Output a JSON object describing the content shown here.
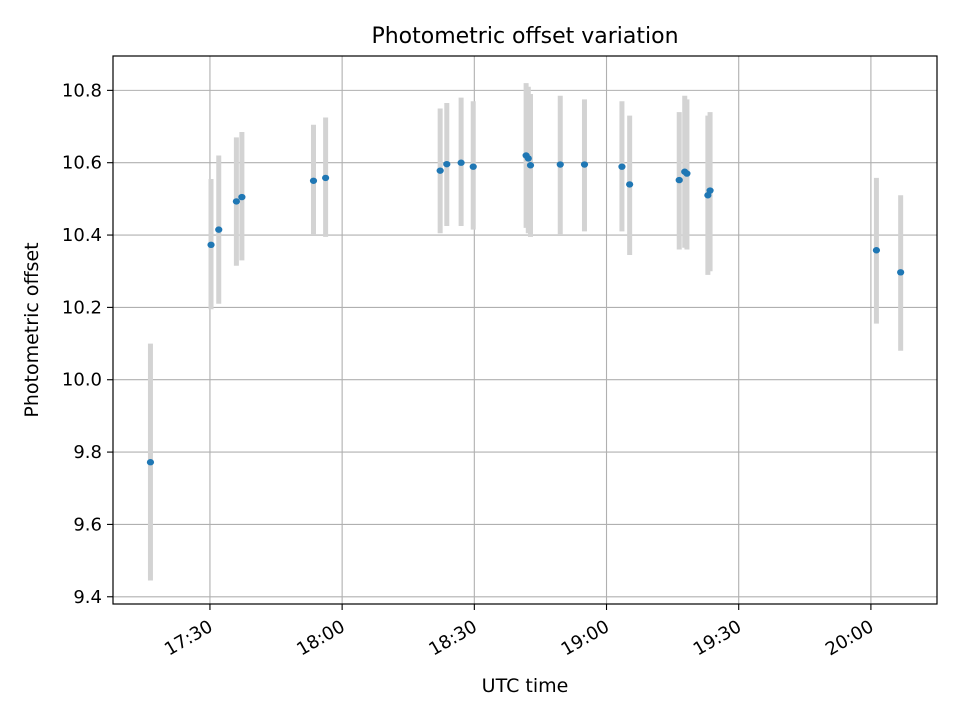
{
  "chart_data": {
    "type": "scatter",
    "title": "Photometric offset variation",
    "xlabel": "UTC time",
    "ylabel": "Photometric offset",
    "x_unit": "UTC time (HH:MM)",
    "xlim": [
      "17:08",
      "20:15"
    ],
    "ylim": [
      9.38,
      10.895
    ],
    "x_tick_labels": [
      "17:30",
      "18:00",
      "18:30",
      "19:00",
      "19:30",
      "20:00"
    ],
    "y_tick_labels": [
      "9.4",
      "9.6",
      "9.8",
      "10.0",
      "10.2",
      "10.4",
      "10.6",
      "10.8"
    ],
    "y_ticks": [
      9.4,
      9.6,
      9.8,
      10.0,
      10.2,
      10.4,
      10.6,
      10.8
    ],
    "grid": true,
    "marker_color": "#1f77b4",
    "errorbar_color": "#d3d3d3",
    "points": [
      {
        "t": "17:16:30",
        "y": 9.772,
        "lo": 9.445,
        "hi": 10.1
      },
      {
        "t": "17:30:15",
        "y": 10.373,
        "lo": 10.195,
        "hi": 10.555
      },
      {
        "t": "17:32:00",
        "y": 10.415,
        "lo": 10.21,
        "hi": 10.62
      },
      {
        "t": "17:36:00",
        "y": 10.493,
        "lo": 10.315,
        "hi": 10.67
      },
      {
        "t": "17:37:15",
        "y": 10.505,
        "lo": 10.33,
        "hi": 10.685
      },
      {
        "t": "17:53:30",
        "y": 10.55,
        "lo": 10.4,
        "hi": 10.705
      },
      {
        "t": "17:56:15",
        "y": 10.558,
        "lo": 10.395,
        "hi": 10.725
      },
      {
        "t": "18:22:15",
        "y": 10.578,
        "lo": 10.405,
        "hi": 10.75
      },
      {
        "t": "18:23:45",
        "y": 10.596,
        "lo": 10.425,
        "hi": 10.765
      },
      {
        "t": "18:27:00",
        "y": 10.6,
        "lo": 10.425,
        "hi": 10.78
      },
      {
        "t": "18:29:45",
        "y": 10.589,
        "lo": 10.415,
        "hi": 10.77
      },
      {
        "t": "18:41:45",
        "y": 10.62,
        "lo": 10.42,
        "hi": 10.82
      },
      {
        "t": "18:42:15",
        "y": 10.612,
        "lo": 10.405,
        "hi": 10.81
      },
      {
        "t": "18:42:45",
        "y": 10.593,
        "lo": 10.395,
        "hi": 10.79
      },
      {
        "t": "18:49:30",
        "y": 10.595,
        "lo": 10.4,
        "hi": 10.785
      },
      {
        "t": "18:55:00",
        "y": 10.595,
        "lo": 10.41,
        "hi": 10.775
      },
      {
        "t": "19:03:30",
        "y": 10.589,
        "lo": 10.41,
        "hi": 10.77
      },
      {
        "t": "19:05:15",
        "y": 10.54,
        "lo": 10.345,
        "hi": 10.73
      },
      {
        "t": "19:16:30",
        "y": 10.552,
        "lo": 10.36,
        "hi": 10.74
      },
      {
        "t": "19:17:45",
        "y": 10.575,
        "lo": 10.365,
        "hi": 10.785
      },
      {
        "t": "19:18:15",
        "y": 10.57,
        "lo": 10.36,
        "hi": 10.775
      },
      {
        "t": "19:23:00",
        "y": 10.51,
        "lo": 10.29,
        "hi": 10.73
      },
      {
        "t": "19:23:30",
        "y": 10.523,
        "lo": 10.3,
        "hi": 10.74
      },
      {
        "t": "20:01:15",
        "y": 10.358,
        "lo": 10.155,
        "hi": 10.558
      },
      {
        "t": "20:06:45",
        "y": 10.297,
        "lo": 10.08,
        "hi": 10.51
      }
    ]
  }
}
